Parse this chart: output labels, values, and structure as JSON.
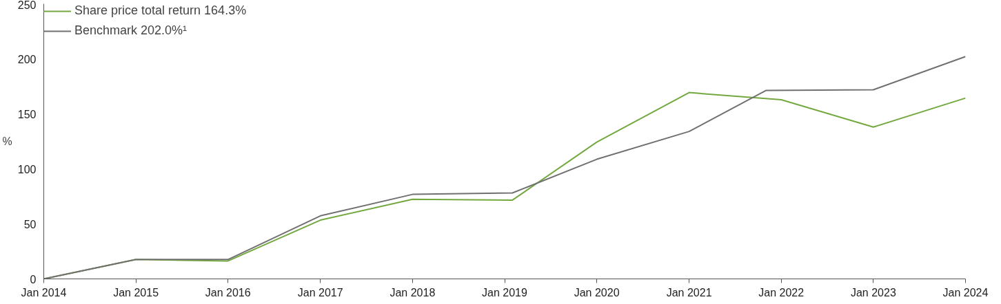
{
  "chart_data": {
    "type": "line",
    "ylabel": "%",
    "legend": "top left",
    "grid": false,
    "xlim": [
      "2014-01",
      "2024-01"
    ],
    "ylim": [
      0,
      250
    ],
    "yticks": [
      0,
      50,
      100,
      150,
      200,
      250
    ],
    "xticks": [
      {
        "value": "2014-01",
        "label": "Jan 2014"
      },
      {
        "value": "2015-01",
        "label": "Jan 2015"
      },
      {
        "value": "2016-01",
        "label": "Jan 2016"
      },
      {
        "value": "2017-01",
        "label": "Jan 2017"
      },
      {
        "value": "2018-01",
        "label": "Jan 2018"
      },
      {
        "value": "2019-01",
        "label": "Jan 2019"
      },
      {
        "value": "2020-01",
        "label": "Jan 2020"
      },
      {
        "value": "2021-01",
        "label": "Jan 2021"
      },
      {
        "value": "2022-01",
        "label": "Jan 2022"
      },
      {
        "value": "2023-01",
        "label": "Jan 2023"
      },
      {
        "value": "2024-01",
        "label": "Jan 2024"
      }
    ],
    "series": [
      {
        "name": "Share price total return 164.3%",
        "color": "#72a83e",
        "x": [
          "2014-01",
          "2015-01",
          "2016-01",
          "2017-01",
          "2018-01",
          "2019-02",
          "2020-01",
          "2021-01",
          "2022-01",
          "2023-01",
          "2024-01"
        ],
        "values": [
          0,
          17.6,
          16.3,
          53.4,
          72.3,
          71.6,
          124.3,
          169.3,
          162.8,
          138,
          164.3
        ]
      },
      {
        "name": "Benchmark 202.0%¹",
        "color": "#707070",
        "x": [
          "2014-01",
          "2015-01",
          "2016-01",
          "2017-01",
          "2018-01",
          "2019-02",
          "2020-01",
          "2021-01",
          "2021-11",
          "2023-01",
          "2024-01"
        ],
        "values": [
          0,
          17.6,
          17.6,
          57.3,
          76.8,
          78.1,
          108.7,
          134,
          171.2,
          171.9,
          202
        ]
      }
    ]
  }
}
